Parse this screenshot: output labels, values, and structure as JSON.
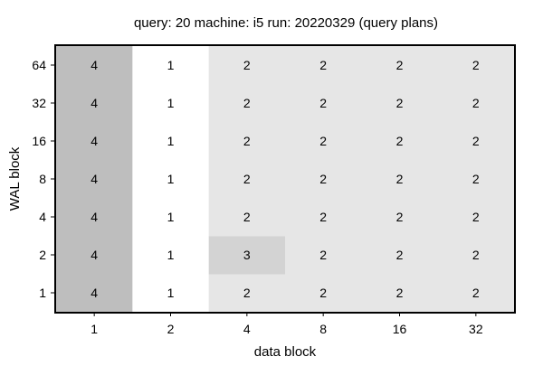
{
  "chart_data": {
    "type": "heatmap",
    "title": "query: 20  machine: i5  run: 20220329  (query plans)",
    "xlabel": "data block",
    "ylabel": "WAL block",
    "x_categories": [
      "1",
      "2",
      "4",
      "8",
      "16",
      "32"
    ],
    "y_categories": [
      "1",
      "2",
      "4",
      "8",
      "16",
      "32",
      "64"
    ],
    "values": [
      [
        4,
        1,
        2,
        2,
        2,
        2
      ],
      [
        4,
        1,
        3,
        2,
        2,
        2
      ],
      [
        4,
        1,
        2,
        2,
        2,
        2
      ],
      [
        4,
        1,
        2,
        2,
        2,
        2
      ],
      [
        4,
        1,
        2,
        2,
        2,
        2
      ],
      [
        4,
        1,
        2,
        2,
        2,
        2
      ],
      [
        4,
        1,
        2,
        2,
        2,
        2
      ]
    ],
    "color_scale": {
      "1": "#ffffff",
      "2": "#e6e6e6",
      "3": "#d3d3d3",
      "4": "#bebebe"
    },
    "grid": false,
    "legend": "none"
  }
}
